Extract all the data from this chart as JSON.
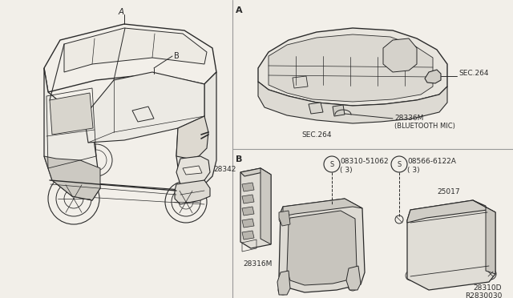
{
  "bg_color": "#f2efe9",
  "line_color": "#2a2a2a",
  "divider_color": "#999999",
  "title_ref": "R2830030",
  "section_A_label": "A",
  "section_B_label": "B",
  "figsize": [
    6.4,
    3.72
  ],
  "dpi": 100
}
